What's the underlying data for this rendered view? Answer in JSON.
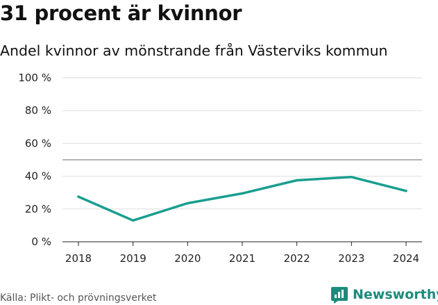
{
  "header": {
    "title": "31 procent är kvinnor",
    "subtitle": "Andel kvinnor av mönstrande från Västerviks kommun"
  },
  "footer": {
    "source": "Källa: Plikt- och prövningsverket",
    "brand": "Newsworthy"
  },
  "colors": {
    "line": "#1a9e8f",
    "grid": "#dddddd",
    "reference_line": "#888888",
    "brand": "#1d8a7c"
  },
  "chart_data": {
    "type": "line",
    "categories": [
      "2018",
      "2019",
      "2020",
      "2021",
      "2022",
      "2023",
      "2024"
    ],
    "series": [
      {
        "values": [
          27.5,
          13,
          23.5,
          29.5,
          37.5,
          39.5,
          31
        ]
      }
    ],
    "ylim": [
      0,
      100
    ],
    "y_ticks": [
      0,
      20,
      40,
      60,
      80,
      100
    ],
    "y_tick_labels": [
      "0 %",
      "20 %",
      "40 %",
      "60 %",
      "80 %",
      "100 %"
    ],
    "reference_line": 50,
    "grid": true
  }
}
